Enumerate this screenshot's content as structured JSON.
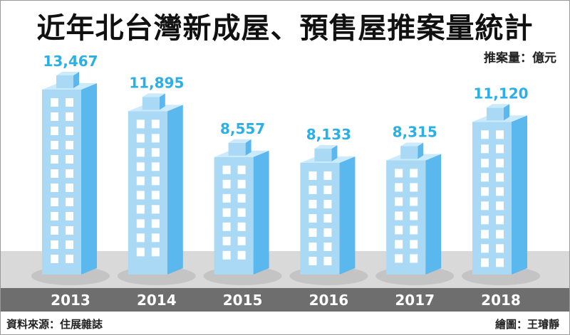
{
  "title": "近年北台灣新成屋、預售屋推案量統計",
  "unit": "推案量：億元",
  "source": "資料來源：住展雜誌",
  "credit": "繪圖：王璿靜",
  "colors": {
    "building_front": "#a9d9f5",
    "building_side": "#5ab8ee",
    "building_top": "#cbeafb",
    "window": "#ffffff",
    "value_label": "#2ab0e6",
    "axis_band": "#6e6e6e",
    "ground_band": "#d9d9d9"
  },
  "chart_data": {
    "type": "bar",
    "style": "building-pictogram",
    "title": "近年北台灣新成屋、預售屋推案量統計",
    "ylabel": "推案量：億元",
    "xlabel": "",
    "categories": [
      "2013",
      "2014",
      "2015",
      "2016",
      "2017",
      "2018"
    ],
    "values": [
      13467,
      11895,
      8557,
      8133,
      8315,
      11120
    ],
    "value_labels": [
      "13,467",
      "11,895",
      "8,557",
      "8,133",
      "8,315",
      "11,120"
    ],
    "ylim": [
      0,
      13467
    ],
    "grid": false,
    "legend": "none"
  }
}
